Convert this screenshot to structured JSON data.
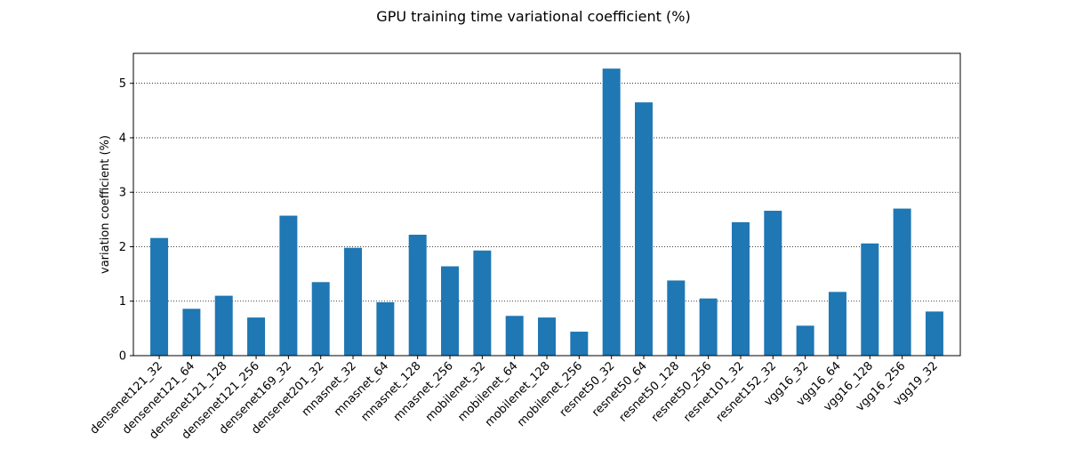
{
  "chart_data": {
    "type": "bar",
    "title": "GPU training time variational coefficient (%)",
    "xlabel": "",
    "ylabel": "variation coefficient (%)",
    "ylim": [
      0,
      5.55
    ],
    "yticks": [
      0,
      1,
      2,
      3,
      4,
      5
    ],
    "grid": "horizontal dotted",
    "bar_color": "#1f77b4",
    "categories": [
      "densenet121_32",
      "densenet121_64",
      "densenet121_128",
      "densenet121_256",
      "densenet169_32",
      "densenet201_32",
      "mnasnet_32",
      "mnasnet_64",
      "mnasnet_128",
      "mnasnet_256",
      "mobilenet_32",
      "mobilenet_64",
      "mobilenet_128",
      "mobilenet_256",
      "resnet50_32",
      "resnet50_64",
      "resnet50_128",
      "resnet50_256",
      "resnet101_32",
      "resnet152_32",
      "vgg16_32",
      "vgg16_64",
      "vgg16_128",
      "vgg16_256",
      "vgg19_32"
    ],
    "values": [
      2.16,
      0.86,
      1.1,
      0.7,
      2.57,
      1.35,
      1.98,
      0.98,
      2.22,
      1.64,
      1.93,
      0.73,
      0.7,
      0.44,
      5.27,
      4.65,
      1.38,
      1.05,
      2.45,
      2.66,
      0.55,
      1.17,
      2.06,
      2.7,
      0.81
    ]
  }
}
